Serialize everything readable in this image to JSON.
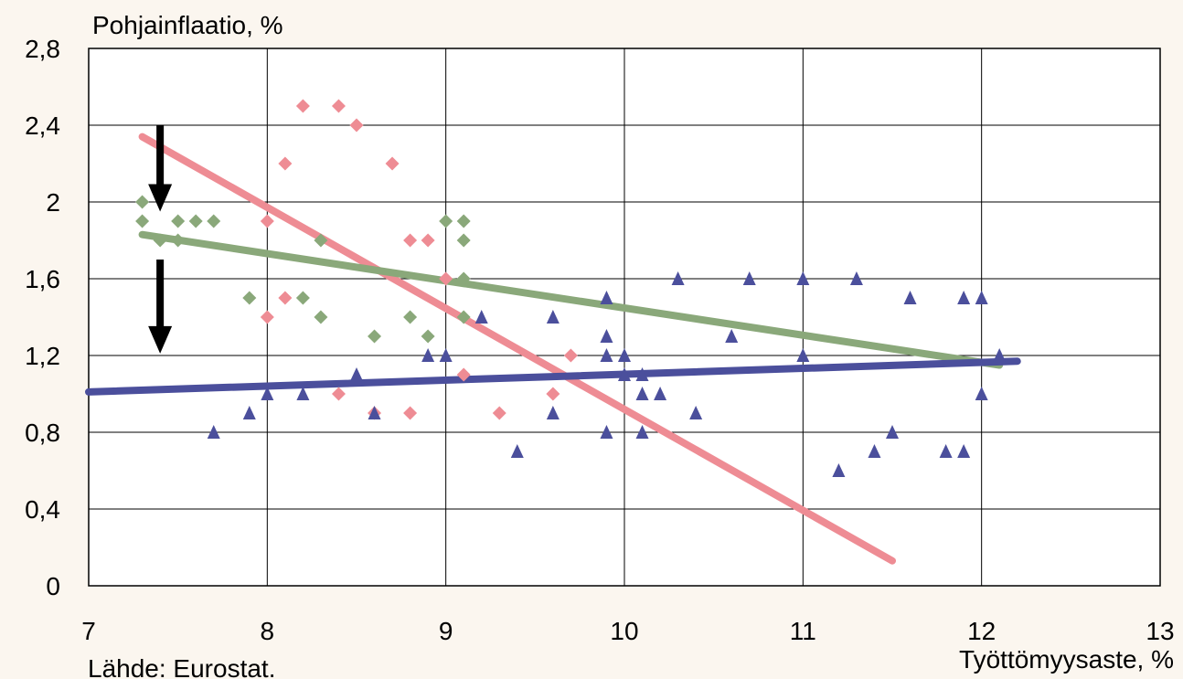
{
  "chart_data": {
    "type": "scatter",
    "ylabel": "Pohjainflaatio, %",
    "xlabel": "Työttömyysaste, %",
    "source": "Lähde: Eurostat.",
    "xlim": [
      7,
      13
    ],
    "ylim": [
      0,
      2.8
    ],
    "xticks": [
      "7",
      "8",
      "9",
      "10",
      "11",
      "12",
      "13"
    ],
    "yticks": [
      "0",
      "0,4",
      "0,8",
      "1,2",
      "1,6",
      "2",
      "2,4",
      "2,8"
    ],
    "grid": true,
    "series": [
      {
        "marker": "diamond",
        "color": "#ee8c94",
        "points": [
          [
            8.0,
            1.9
          ],
          [
            8.1,
            2.2
          ],
          [
            8.2,
            2.5
          ],
          [
            8.4,
            2.5
          ],
          [
            8.5,
            2.4
          ],
          [
            8.7,
            2.2
          ],
          [
            8.0,
            1.4
          ],
          [
            8.1,
            1.5
          ],
          [
            8.4,
            1.0
          ],
          [
            8.6,
            0.9
          ],
          [
            8.8,
            0.9
          ],
          [
            8.8,
            1.8
          ],
          [
            8.9,
            1.8
          ],
          [
            9.0,
            1.6
          ],
          [
            9.1,
            1.1
          ],
          [
            9.3,
            0.9
          ],
          [
            9.6,
            1.0
          ],
          [
            9.7,
            1.2
          ]
        ],
        "trendline": [
          [
            7.3,
            2.34
          ],
          [
            11.5,
            0.13
          ]
        ]
      },
      {
        "marker": "diamond",
        "color": "#8aa87a",
        "points": [
          [
            7.3,
            2.0
          ],
          [
            7.3,
            1.9
          ],
          [
            7.4,
            1.8
          ],
          [
            7.5,
            1.9
          ],
          [
            7.5,
            1.8
          ],
          [
            7.6,
            1.9
          ],
          [
            7.7,
            1.9
          ],
          [
            7.9,
            1.5
          ],
          [
            8.2,
            1.5
          ],
          [
            8.3,
            1.8
          ],
          [
            8.3,
            1.4
          ],
          [
            8.6,
            1.3
          ],
          [
            8.8,
            1.4
          ],
          [
            8.9,
            1.3
          ],
          [
            9.0,
            1.9
          ],
          [
            9.1,
            1.9
          ],
          [
            9.1,
            1.8
          ],
          [
            9.1,
            1.6
          ],
          [
            9.1,
            1.4
          ]
        ],
        "trendline": [
          [
            7.3,
            1.83
          ],
          [
            12.1,
            1.15
          ]
        ]
      },
      {
        "marker": "triangle",
        "color": "#4b4f9c",
        "points": [
          [
            7.7,
            0.8
          ],
          [
            7.9,
            0.9
          ],
          [
            8.0,
            1.0
          ],
          [
            8.2,
            1.0
          ],
          [
            8.5,
            1.1
          ],
          [
            8.6,
            0.9
          ],
          [
            8.9,
            1.2
          ],
          [
            9.0,
            1.2
          ],
          [
            9.2,
            1.4
          ],
          [
            9.4,
            0.7
          ],
          [
            9.6,
            1.4
          ],
          [
            9.6,
            0.9
          ],
          [
            9.9,
            1.5
          ],
          [
            9.9,
            1.3
          ],
          [
            9.9,
            1.2
          ],
          [
            9.9,
            0.8
          ],
          [
            10.0,
            1.2
          ],
          [
            10.0,
            1.1
          ],
          [
            10.1,
            1.1
          ],
          [
            10.1,
            1.0
          ],
          [
            10.1,
            0.8
          ],
          [
            10.2,
            1.0
          ],
          [
            10.3,
            1.6
          ],
          [
            10.4,
            0.9
          ],
          [
            10.6,
            1.3
          ],
          [
            10.7,
            1.6
          ],
          [
            11.0,
            1.6
          ],
          [
            11.0,
            1.2
          ],
          [
            11.2,
            0.6
          ],
          [
            11.3,
            1.6
          ],
          [
            11.4,
            0.7
          ],
          [
            11.5,
            0.8
          ],
          [
            11.6,
            1.5
          ],
          [
            11.8,
            0.7
          ],
          [
            11.9,
            1.5
          ],
          [
            11.9,
            0.7
          ],
          [
            12.0,
            1.5
          ],
          [
            12.0,
            1.0
          ],
          [
            12.1,
            1.2
          ]
        ],
        "trendline": [
          [
            7.0,
            1.01
          ],
          [
            12.2,
            1.17
          ]
        ]
      }
    ],
    "annotations": [
      {
        "type": "arrow-down",
        "x": 7.4,
        "from": 2.4,
        "to": 1.95
      },
      {
        "type": "arrow-down",
        "x": 7.4,
        "from": 1.7,
        "to": 1.21
      }
    ]
  }
}
